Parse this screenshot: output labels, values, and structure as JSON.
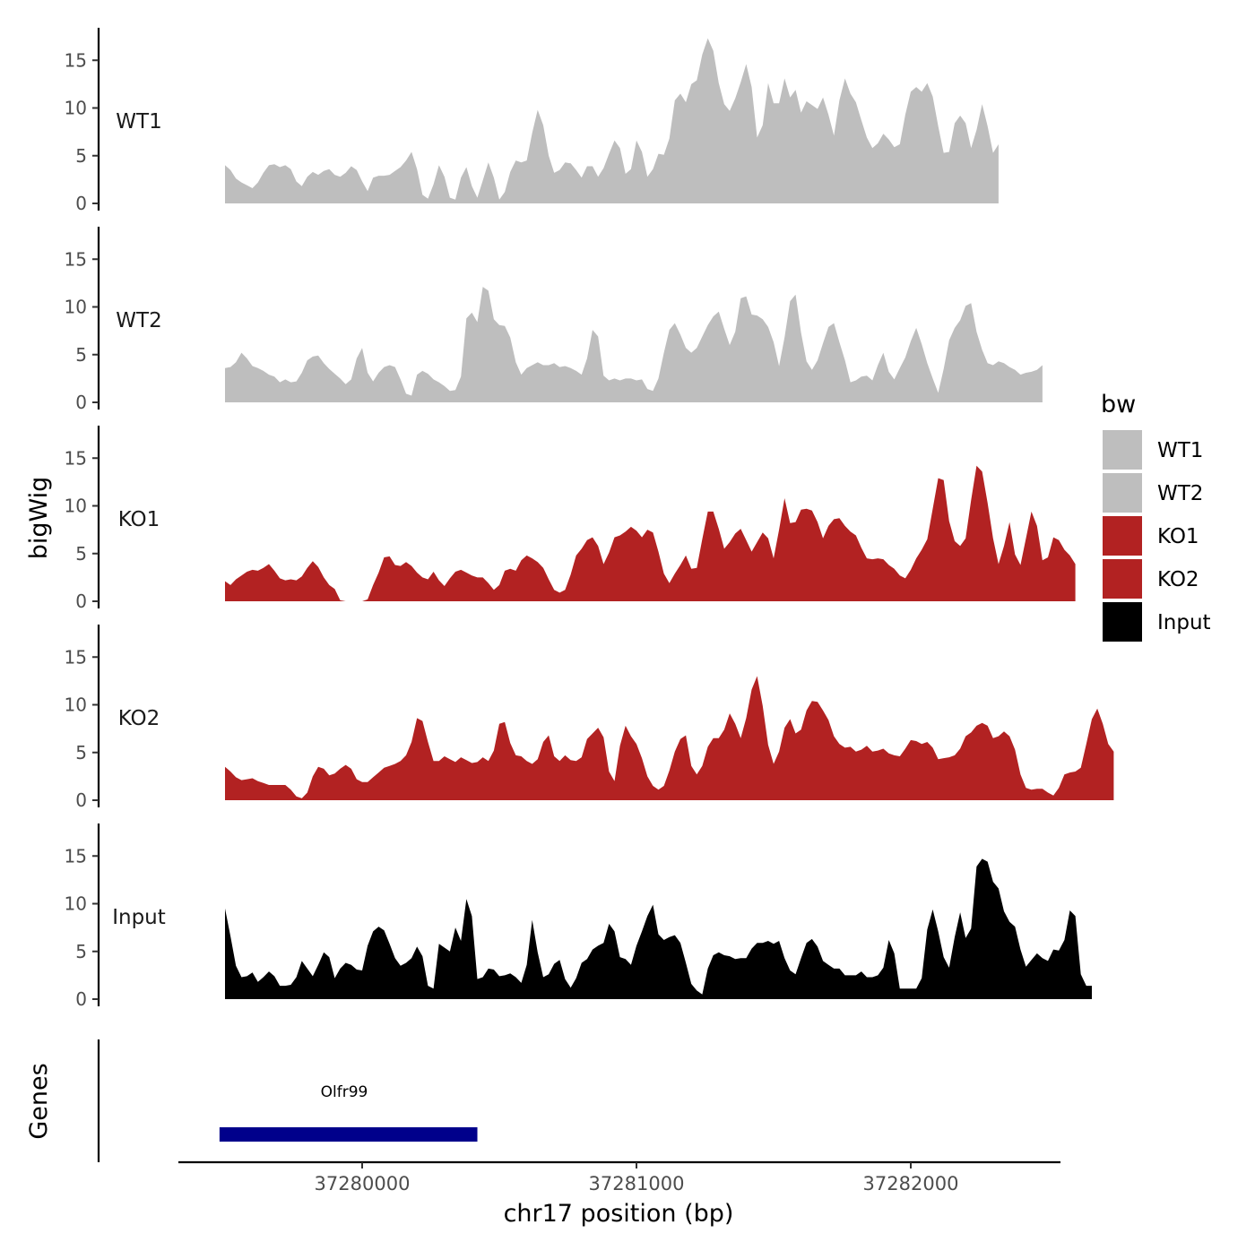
{
  "chart_data": {
    "type": "area",
    "xlabel": "chr17 position (bp)",
    "ylabel": "bigWig",
    "genes_label": "Genes",
    "xlim": [
      37279250,
      37282430
    ],
    "ylim": [
      0,
      18
    ],
    "x_ticks": [
      37280000,
      37281000,
      37282000
    ],
    "x_tick_labels": [
      "37280000",
      "37281000",
      "37282000"
    ],
    "y_ticks": [
      0,
      5,
      10,
      15
    ],
    "y_tick_labels": [
      "0",
      "5",
      "10",
      "15"
    ],
    "x_start": 37279500,
    "x_step": 20,
    "legend": {
      "title": "bw",
      "position": "right",
      "entries": [
        {
          "label": "WT1",
          "color": "#BEBEBE"
        },
        {
          "label": "WT2",
          "color": "#BEBEBE"
        },
        {
          "label": "KO1",
          "color": "#B22222"
        },
        {
          "label": "KO2",
          "color": "#B22222"
        },
        {
          "label": "Input",
          "color": "#000000"
        }
      ]
    },
    "series": [
      {
        "name": "WT1",
        "color": "#BEBEBE",
        "values": [
          4,
          3.5,
          2.6,
          2.2,
          1.9,
          1.6,
          2.2,
          3.2,
          4,
          4.1,
          3.8,
          4,
          3.6,
          2.3,
          1.8,
          2.8,
          3.3,
          3,
          3.4,
          3.6,
          3,
          2.8,
          3.2,
          3.9,
          3.5,
          2.3,
          1.3,
          2.7,
          2.9,
          2.9,
          3,
          3.4,
          3.8,
          4.5,
          5.4,
          3.6,
          0.9,
          0.5,
          2,
          4,
          2.8,
          0.6,
          0.4,
          2.7,
          3.8,
          1.8,
          0.6,
          2.4,
          4.3,
          2.7,
          0.4,
          1.2,
          3.3,
          4.5,
          4.3,
          4.5,
          7.4,
          9.8,
          8.2,
          5,
          3.2,
          3.5,
          4.3,
          4.2,
          3.5,
          2.7,
          3.9,
          3.9,
          2.8,
          3.7,
          5.2,
          6.6,
          5.8,
          3.1,
          3.6,
          6.6,
          5.4,
          2.8,
          3.6,
          5.2,
          5.1,
          6.8,
          10.8,
          11.5,
          10.6,
          12.5,
          12.9,
          15.6,
          17.3,
          16,
          12.6,
          10.4,
          9.7,
          11,
          12.7,
          14.6,
          12.2,
          6.9,
          8.2,
          12.6,
          10.5,
          10.5,
          13.1,
          11.1,
          11.9,
          9.5,
          10.7,
          10.3,
          9.9,
          11.1,
          9.3,
          7.1,
          10.8,
          13.1,
          11.5,
          10.6,
          8.7,
          6.9,
          5.8,
          6.3,
          7.3,
          6.7,
          5.9,
          6.2,
          9.3,
          11.7,
          12.2,
          11.7,
          12.6,
          11.2,
          8.1,
          5.3,
          5.4,
          8.4,
          9.2,
          8.4,
          5.8,
          7.7,
          10.4,
          8.1,
          5.3,
          6.2
        ]
      },
      {
        "name": "WT2",
        "color": "#BEBEBE",
        "values": [
          3.6,
          3.7,
          4.2,
          5.2,
          4.6,
          3.8,
          3.6,
          3.3,
          2.9,
          2.7,
          2.1,
          2.4,
          2.1,
          2.2,
          3.1,
          4.4,
          4.8,
          4.9,
          4.1,
          3.5,
          3,
          2.5,
          1.9,
          2.4,
          4.6,
          5.7,
          3.1,
          2.2,
          3.1,
          3.7,
          3.9,
          3.7,
          2.4,
          0.9,
          0.7,
          2.9,
          3.3,
          3,
          2.4,
          2.1,
          1.7,
          1.2,
          1.3,
          2.7,
          8.8,
          9.4,
          8.4,
          12.1,
          11.7,
          8.7,
          8.1,
          8,
          6.8,
          4.2,
          2.9,
          3.6,
          3.9,
          4.2,
          3.9,
          3.9,
          4.1,
          3.7,
          3.8,
          3.6,
          3.3,
          2.9,
          4.6,
          7.6,
          6.9,
          2.8,
          2.3,
          2.5,
          2.3,
          2.5,
          2.5,
          2.3,
          2.4,
          1.4,
          1.2,
          2.5,
          5.2,
          7.6,
          8.3,
          7.1,
          5.7,
          5.2,
          5.7,
          6.9,
          8.1,
          9,
          9.5,
          7.7,
          6,
          7.4,
          10.9,
          11.1,
          9.2,
          9.1,
          8.7,
          7.9,
          6.3,
          3.8,
          6.8,
          10.6,
          11.3,
          7.3,
          4.3,
          3.4,
          4.4,
          6.2,
          7.9,
          8.3,
          6.3,
          4.4,
          2.1,
          2.3,
          2.7,
          2.8,
          2.3,
          3.9,
          5.2,
          3.2,
          2.4,
          3.6,
          4.7,
          6.4,
          7.8,
          6.1,
          4.1,
          2.5,
          1,
          3.5,
          6.5,
          7.8,
          8.6,
          10.1,
          10.4,
          7.4,
          5.5,
          4.1,
          3.9,
          4.3,
          4.1,
          3.7,
          3.4,
          2.9,
          3.1,
          3.2,
          3.4,
          3.9
        ]
      },
      {
        "name": "KO1",
        "color": "#B22222",
        "values": [
          2.1,
          1.7,
          2.3,
          2.7,
          3.1,
          3.3,
          3.2,
          3.5,
          3.9,
          3.2,
          2.4,
          2.2,
          2.3,
          2.2,
          2.6,
          3.5,
          4.2,
          3.6,
          2.5,
          1.7,
          1.3,
          0.1,
          0,
          0,
          0,
          0,
          0.2,
          1.7,
          3,
          4.6,
          4.7,
          3.8,
          3.7,
          4.1,
          3.7,
          3,
          2.5,
          2.3,
          3.1,
          2.2,
          1.6,
          2.4,
          3.1,
          3.3,
          3,
          2.7,
          2.5,
          2.5,
          1.9,
          1.2,
          1.7,
          3.2,
          3.4,
          3.2,
          4.3,
          4.8,
          4.5,
          4.1,
          3.5,
          2.3,
          1.2,
          0.9,
          1.2,
          2.8,
          4.8,
          5.5,
          6.4,
          6.7,
          5.8,
          3.9,
          5.1,
          6.7,
          6.9,
          7.3,
          7.8,
          7.4,
          6.7,
          7.5,
          7.2,
          5.2,
          2.9,
          1.9,
          2.9,
          3.8,
          4.8,
          3.4,
          3.5,
          6.5,
          9.4,
          9.4,
          7.6,
          5.5,
          6.2,
          7.1,
          7.6,
          6.4,
          5.2,
          6.2,
          7.2,
          6.6,
          4.5,
          7.5,
          10.8,
          8.2,
          8.3,
          9.6,
          9.7,
          9.5,
          8.3,
          6.6,
          7.9,
          8.6,
          8.7,
          7.9,
          7.3,
          6.9,
          5.6,
          4.5,
          4.4,
          4.5,
          4.4,
          3.8,
          3.4,
          2.7,
          2.4,
          3.3,
          4.5,
          5.4,
          6.5,
          9.7,
          12.9,
          12.7,
          8.4,
          6.3,
          5.8,
          6.6,
          10.6,
          14.2,
          13.6,
          10.3,
          6.6,
          3.9,
          5.8,
          8.3,
          4.9,
          3.8,
          6.6,
          9.4,
          7.9,
          4.3,
          4.6,
          6.7,
          6.4,
          5.4,
          4.8,
          3.9
        ]
      },
      {
        "name": "KO2",
        "color": "#B22222",
        "values": [
          3.5,
          3,
          2.4,
          2.1,
          2.2,
          2.3,
          2,
          1.8,
          1.6,
          1.6,
          1.6,
          1.6,
          1.1,
          0.4,
          0.2,
          0.8,
          2.5,
          3.5,
          3.3,
          2.6,
          2.8,
          3.3,
          3.7,
          3.3,
          2.2,
          1.9,
          1.9,
          2.4,
          2.9,
          3.4,
          3.6,
          3.8,
          4.1,
          4.7,
          6.1,
          8.6,
          8.3,
          6.1,
          4.1,
          4.1,
          4.6,
          4.3,
          4,
          4.5,
          4.2,
          3.9,
          4,
          4.5,
          4.1,
          5.2,
          8,
          8.2,
          6,
          4.7,
          4.6,
          4.1,
          3.8,
          4.3,
          6.1,
          6.8,
          4.6,
          4.1,
          4.7,
          4.2,
          4.1,
          4.5,
          6.4,
          7,
          7.6,
          6.6,
          3,
          2,
          5.7,
          7.8,
          6.7,
          5.9,
          4.4,
          2.5,
          1.5,
          1.1,
          1.5,
          3.1,
          5.1,
          6.4,
          6.8,
          3.6,
          2.7,
          3.6,
          5.6,
          6.5,
          6.5,
          7.4,
          9.1,
          8,
          6.5,
          8.6,
          11.6,
          13,
          9.9,
          5.8,
          3.8,
          5.1,
          7.6,
          8.5,
          7,
          7.4,
          9.4,
          10.4,
          10.3,
          9.4,
          8.4,
          6.7,
          5.9,
          5.5,
          5.6,
          5.1,
          5.3,
          5.7,
          5.1,
          5.2,
          5.4,
          4.9,
          4.7,
          4.6,
          5.4,
          6.3,
          6.2,
          5.9,
          6.1,
          5.5,
          4.3,
          4.4,
          4.5,
          4.7,
          5.4,
          6.7,
          7.1,
          7.8,
          8.1,
          7.8,
          6.5,
          6.7,
          7.2,
          6.7,
          5.3,
          2.7,
          1.3,
          1.1,
          1.2,
          1.2,
          0.8,
          0.5,
          1.3,
          2.7,
          2.9,
          3,
          3.4,
          5.9,
          8.5,
          9.6,
          8,
          5.9,
          5.1
        ]
      },
      {
        "name": "Input",
        "color": "#000000",
        "values": [
          9.5,
          6.6,
          3.5,
          2.3,
          2.4,
          2.8,
          1.8,
          2.3,
          2.9,
          2.4,
          1.4,
          1.4,
          1.5,
          2.3,
          4,
          3.2,
          2.4,
          3.6,
          4.9,
          4.4,
          2.2,
          3.2,
          3.8,
          3.6,
          3.1,
          3,
          5.6,
          7.1,
          7.6,
          7.2,
          5.8,
          4.3,
          3.5,
          3.8,
          4.3,
          5.5,
          4.5,
          1.4,
          1.1,
          5.8,
          5.4,
          5,
          7.5,
          6.1,
          10.5,
          8.7,
          2.1,
          2.3,
          3.2,
          3.1,
          2.4,
          2.5,
          2.7,
          2.3,
          1.7,
          3.6,
          8.3,
          4.9,
          2.3,
          2.6,
          3.7,
          4.1,
          2.1,
          1.2,
          2.2,
          3.8,
          4.2,
          5.2,
          5.6,
          5.9,
          7.9,
          7.1,
          4.4,
          4.2,
          3.6,
          5.6,
          7.1,
          8.7,
          9.9,
          6.8,
          6.2,
          6.5,
          6.7,
          5.9,
          3.8,
          1.6,
          0.9,
          0.5,
          3.2,
          4.6,
          4.9,
          4.6,
          4.5,
          4.2,
          4.3,
          4.3,
          5.3,
          5.9,
          5.9,
          6.1,
          5.8,
          6.1,
          4.3,
          3,
          2.6,
          4.3,
          5.9,
          6.3,
          5.5,
          4,
          3.6,
          3.2,
          3.2,
          2.5,
          2.5,
          2.5,
          2.9,
          2.3,
          2.3,
          2.5,
          3.3,
          6.2,
          4.8,
          1.1,
          1.1,
          1.1,
          1.1,
          2.2,
          7.3,
          9.4,
          7.1,
          4.4,
          3.3,
          6.5,
          9.1,
          6.4,
          7.4,
          13.9,
          14.7,
          14.4,
          12.3,
          11.6,
          9.2,
          8.1,
          7.6,
          5.2,
          3.4,
          4.1,
          4.8,
          4.3,
          4,
          5.2,
          5.1,
          6.2,
          9.3,
          8.7,
          2.6,
          1.4,
          1.4
        ]
      }
    ],
    "gene": {
      "name": "Olfr99",
      "start": 37279480,
      "end": 37280420,
      "color": "#00008B"
    }
  }
}
